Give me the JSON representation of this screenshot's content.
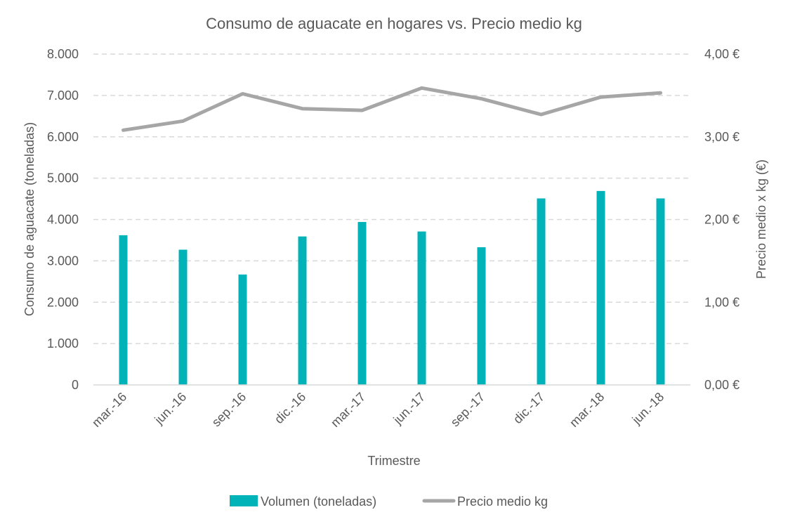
{
  "chart_data": {
    "type": "bar+line",
    "title": "Consumo de aguacate en hogares vs. Precio medio kg",
    "xlabel": "Trimestre",
    "ylabel_left": "Consumo de aguacate (toneladas)",
    "ylabel_right": "Precio medio x kg (€)",
    "categories": [
      "mar.-16",
      "jun.-16",
      "sep.-16",
      "dic.-16",
      "mar.-17",
      "jun.-17",
      "sep.-17",
      "dic.-17",
      "mar.-18",
      "jun.-18"
    ],
    "ylim_left": [
      0,
      8000
    ],
    "ylim_right": [
      0,
      4
    ],
    "yticks_left": [
      "0",
      "1.000",
      "2.000",
      "3.000",
      "4.000",
      "5.000",
      "6.000",
      "7.000",
      "8.000"
    ],
    "yticks_right": [
      "0,00 €",
      "1,00 €",
      "2,00 €",
      "3,00 €",
      "4,00 €"
    ],
    "grid": true,
    "legend_position": "bottom",
    "series": [
      {
        "name": "Volumen (toneladas)",
        "type": "bar",
        "axis": "left",
        "color": "#00B3B8",
        "values": [
          3620,
          3270,
          2670,
          3590,
          3940,
          3710,
          3330,
          4510,
          4690,
          4510
        ]
      },
      {
        "name": "Precio medio kg",
        "type": "line",
        "axis": "right",
        "color": "#A6A6A6",
        "values": [
          3.08,
          3.19,
          3.52,
          3.34,
          3.32,
          3.59,
          3.46,
          3.27,
          3.48,
          3.53
        ]
      }
    ]
  }
}
